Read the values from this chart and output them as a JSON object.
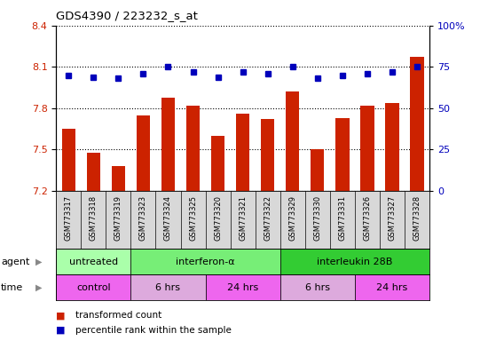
{
  "title": "GDS4390 / 223232_s_at",
  "samples": [
    "GSM773317",
    "GSM773318",
    "GSM773319",
    "GSM773323",
    "GSM773324",
    "GSM773325",
    "GSM773320",
    "GSM773321",
    "GSM773322",
    "GSM773329",
    "GSM773330",
    "GSM773331",
    "GSM773326",
    "GSM773327",
    "GSM773328"
  ],
  "transformed_count": [
    7.65,
    7.48,
    7.38,
    7.75,
    7.88,
    7.82,
    7.6,
    7.76,
    7.72,
    7.92,
    7.5,
    7.73,
    7.82,
    7.84,
    8.17
  ],
  "percentile_rank": [
    70,
    69,
    68,
    71,
    75,
    72,
    69,
    72,
    71,
    75,
    68,
    70,
    71,
    72,
    75
  ],
  "ylim_left": [
    7.2,
    8.4
  ],
  "ylim_right": [
    0,
    100
  ],
  "yticks_left": [
    7.2,
    7.5,
    7.8,
    8.1,
    8.4
  ],
  "yticks_right": [
    0,
    25,
    50,
    75,
    100
  ],
  "bar_color": "#cc2200",
  "dot_color": "#0000bb",
  "label_bg_color": "#d8d8d8",
  "agent_groups": [
    {
      "label": "untreated",
      "start": 0,
      "end": 3,
      "color": "#aaffaa"
    },
    {
      "label": "interferon-α",
      "start": 3,
      "end": 9,
      "color": "#77ee77"
    },
    {
      "label": "interleukin 28B",
      "start": 9,
      "end": 15,
      "color": "#33cc33"
    }
  ],
  "time_groups": [
    {
      "label": "control",
      "start": 0,
      "end": 3,
      "color": "#ee66ee"
    },
    {
      "label": "6 hrs",
      "start": 3,
      "end": 6,
      "color": "#ddaadd"
    },
    {
      "label": "24 hrs",
      "start": 6,
      "end": 9,
      "color": "#ee66ee"
    },
    {
      "label": "6 hrs",
      "start": 9,
      "end": 12,
      "color": "#ddaadd"
    },
    {
      "label": "24 hrs",
      "start": 12,
      "end": 15,
      "color": "#ee66ee"
    }
  ],
  "legend_bar_label": "transformed count",
  "legend_dot_label": "percentile rank within the sample",
  "agent_label": "agent",
  "time_label": "time"
}
